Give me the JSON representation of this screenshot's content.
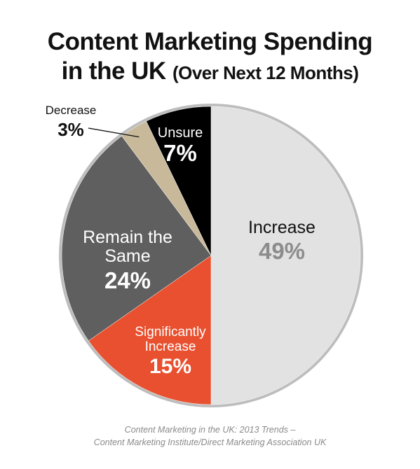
{
  "title": {
    "line1": "Content Marketing Spending",
    "line2_main": "in the UK",
    "line2_sub": "(Over Next 12 Months)"
  },
  "source": {
    "line1": "Content Marketing in the UK: 2013 Trends –",
    "line2": "Content Marketing Institute/Direct Marketing Association UK"
  },
  "colors": {
    "increase": "#e2e2e2",
    "significantly_increase": "#e8502f",
    "remain_the_same": "#5f5f5f",
    "decrease": "#c9b99b",
    "unsure": "#000000",
    "rim": "#bdbdbd",
    "increase_pct_text": "#8c8c8c",
    "light_text": "#ffffff",
    "dark_text": "#111111"
  },
  "chart_data": {
    "type": "pie",
    "title": "Content Marketing Spending in the UK (Over Next 12 Months)",
    "slices": [
      {
        "key": "increase",
        "label_lines": [
          "Increase"
        ],
        "value": 49,
        "value_label": "49%"
      },
      {
        "key": "significantly_increase",
        "label_lines": [
          "Significantly",
          "Increase"
        ],
        "value": 15,
        "value_label": "15%"
      },
      {
        "key": "remain_the_same",
        "label_lines": [
          "Remain the",
          "Same"
        ],
        "value": 24,
        "value_label": "24%"
      },
      {
        "key": "decrease",
        "label_lines": [
          "Decrease"
        ],
        "value": 3,
        "value_label": "3%"
      },
      {
        "key": "unsure",
        "label_lines": [
          "Unsure"
        ],
        "value": 7,
        "value_label": "7%"
      }
    ],
    "start_angle_deg": 0,
    "direction": "clockwise",
    "legend": "none"
  }
}
